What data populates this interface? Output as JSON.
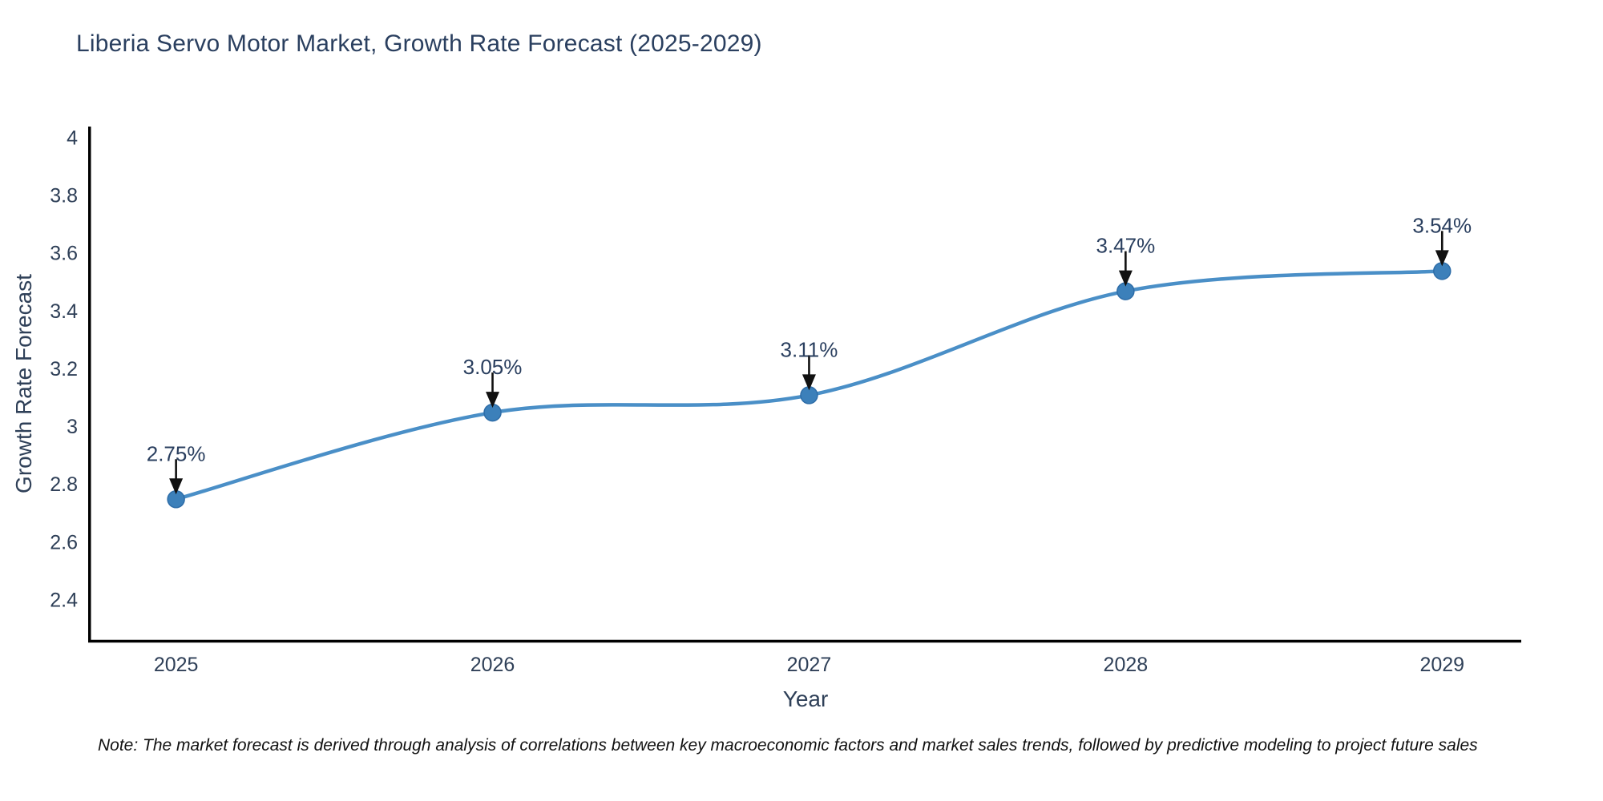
{
  "title": "Liberia Servo Motor Market, Growth Rate Forecast (2025-2029)",
  "note": "Note: The market forecast is derived through analysis of correlations between key macroeconomic factors and market sales trends, followed by predictive modeling to project future sales",
  "chart_data": {
    "type": "line",
    "title": "Liberia Servo Motor Market, Growth Rate Forecast (2025-2029)",
    "xlabel": "Year",
    "ylabel": "Growth Rate Forecast",
    "x": [
      2025,
      2026,
      2027,
      2028,
      2029
    ],
    "values": [
      2.75,
      3.05,
      3.11,
      3.47,
      3.54
    ],
    "point_labels": [
      "2.75%",
      "3.05%",
      "3.11%",
      "3.47%",
      "3.54%"
    ],
    "x_tick_labels": [
      "2025",
      "2026",
      "2027",
      "2028",
      "2029"
    ],
    "y_ticks": [
      2.4,
      2.6,
      2.8,
      3.0,
      3.2,
      3.4,
      3.6,
      3.8,
      4.0
    ],
    "y_tick_labels": [
      "2.4",
      "2.6",
      "2.8",
      "3",
      "3.2",
      "3.4",
      "3.6",
      "3.8",
      "4"
    ],
    "xlim": [
      2024.73,
      2029.25
    ],
    "ylim": [
      2.26,
      4.04
    ],
    "grid": false,
    "legend": false,
    "line_shape": "spline",
    "colors": {
      "line": "#4a8fc7",
      "marker_fill": "#3c80ba",
      "marker_edge": "#2e6da8",
      "axis_line": "#000000",
      "tick_label": "#2f4058",
      "annotation_text": "#2a3f5f",
      "annotation_arrow": "#111111",
      "title": "#2a3f5f",
      "note": "#111111",
      "background": "#ffffff"
    }
  }
}
